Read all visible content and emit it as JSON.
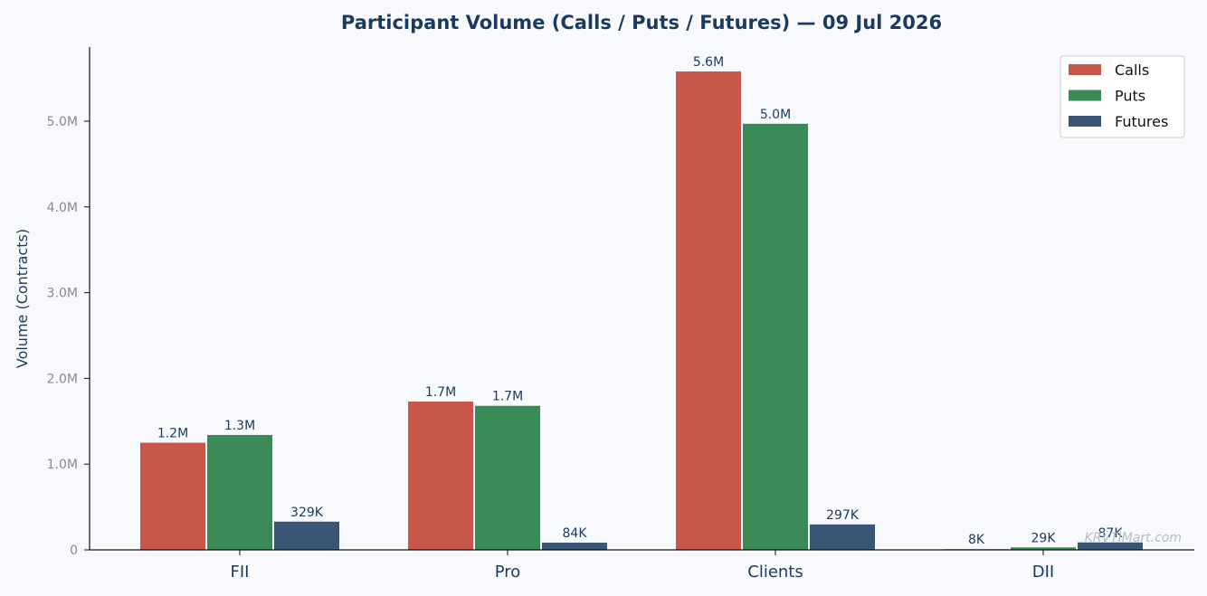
{
  "chart_data": {
    "type": "bar",
    "title": "Participant Volume (Calls / Puts / Futures) — 09 Jul 2026",
    "xlabel": "",
    "ylabel": "Volume (Contracts)",
    "categories": [
      "FII",
      "Pro",
      "Clients",
      "DII"
    ],
    "series": [
      {
        "name": "Calls",
        "color": "#c9564a",
        "values": [
          1250000,
          1730000,
          5580000,
          8000
        ],
        "labels": [
          "1.2M",
          "1.7M",
          "5.6M",
          "8K"
        ]
      },
      {
        "name": "Puts",
        "color": "#3a8a57",
        "values": [
          1340000,
          1680000,
          4970000,
          29000
        ],
        "labels": [
          "1.3M",
          "1.7M",
          "5.0M",
          "29K"
        ]
      },
      {
        "name": "Futures",
        "color": "#3b5675",
        "values": [
          329000,
          84000,
          297000,
          87000
        ],
        "labels": [
          "329K",
          "84K",
          "297K",
          "87K"
        ]
      }
    ],
    "ylim": [
      0,
      5850000
    ],
    "yticks": [
      0,
      1000000,
      2000000,
      3000000,
      4000000,
      5000000
    ],
    "ytick_labels": [
      "0",
      "1.0M",
      "2.0M",
      "3.0M",
      "4.0M",
      "5.0M"
    ],
    "grid": false,
    "legend_position": "top-right"
  },
  "watermark": "KRVTIMart.com"
}
